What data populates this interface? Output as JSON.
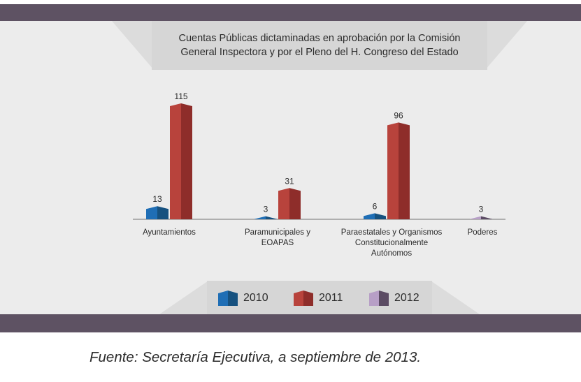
{
  "chart_data": {
    "type": "bar",
    "title": "Cuentas Públicas dictaminadas en aprobación por la Comisión General Inspectora y por el Pleno del H. Congreso del Estado",
    "categories": [
      "Ayuntamientos",
      "Paramunicipales y EOAPAS",
      "Paraestatales y Organismos Constitucionalmente Autónomos",
      "Poderes"
    ],
    "series": [
      {
        "name": "2010",
        "values": [
          13,
          3,
          6,
          null
        ],
        "color": "#1f6eb5",
        "side_color": "#16517f"
      },
      {
        "name": "2011",
        "values": [
          115,
          31,
          96,
          null
        ],
        "color": "#b8433c",
        "side_color": "#8e2d2a"
      },
      {
        "name": "2012",
        "values": [
          null,
          null,
          null,
          3
        ],
        "color": "#b79fc6",
        "side_color": "#5b4b63"
      }
    ],
    "legend_position": "bottom-center",
    "grid": false,
    "ylim": [
      0,
      120
    ]
  },
  "title": {
    "line1": "Cuentas Públicas dictaminadas en aprobación por la Comisión",
    "line2": "General Inspectora y por el Pleno del H. Congreso del Estado"
  },
  "category_labels": [
    {
      "line1": "Ayuntamientos",
      "line2": "",
      "line3": ""
    },
    {
      "line1": "Paramunicipales y",
      "line2": "EOAPAS",
      "line3": ""
    },
    {
      "line1": "Paraestatales y Organismos",
      "line2": "Constitucionalmente",
      "line3": "Autónomos"
    },
    {
      "line1": "Poderes",
      "line2": "",
      "line3": ""
    }
  ],
  "legend": [
    {
      "label": "2010",
      "color": "#1f6eb5",
      "side_color": "#16517f"
    },
    {
      "label": "2011",
      "color": "#b8433c",
      "side_color": "#8e2d2a"
    },
    {
      "label": "2012",
      "color": "#b79fc6",
      "side_color": "#5b4b63"
    }
  ],
  "source": "Fuente: Secretaría Ejecutiva, a septiembre de 2013.",
  "colors": {
    "frame_bar": "#5e5263",
    "panel": "#ececec",
    "title_box": "#d6d6d6"
  }
}
